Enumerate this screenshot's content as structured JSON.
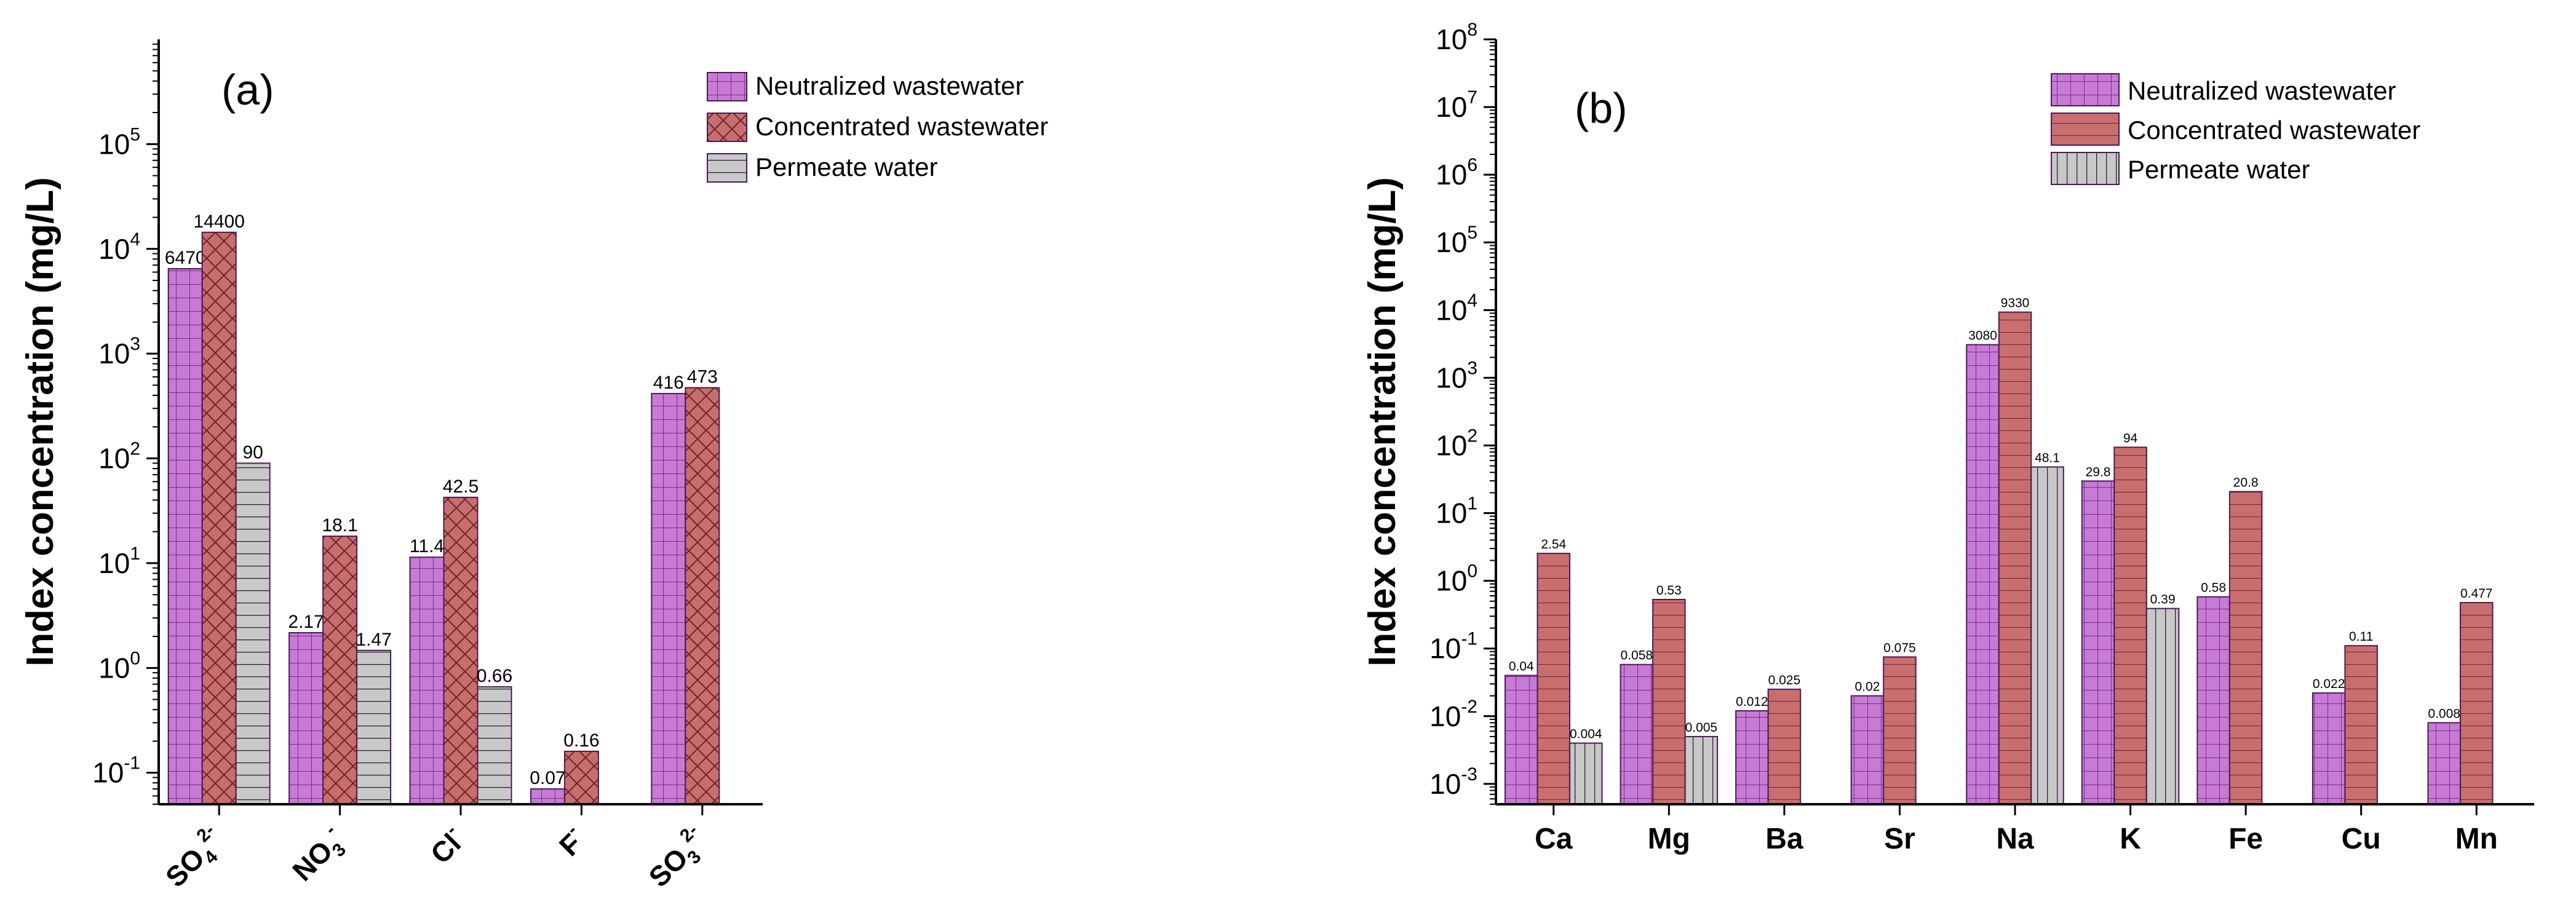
{
  "chart_data": [
    {
      "type": "bar",
      "panel_label": "(a)",
      "ylabel": "Index concentration (mg/L)",
      "yscale": "log",
      "ylim": [
        0.05,
        1000000
      ],
      "y_ticks": [
        {
          "value": 0.1,
          "base": "10",
          "exp": "-1"
        },
        {
          "value": 1,
          "base": "10",
          "exp": "0"
        },
        {
          "value": 10,
          "base": "10",
          "exp": "1"
        },
        {
          "value": 100,
          "base": "10",
          "exp": "2"
        },
        {
          "value": 1000,
          "base": "10",
          "exp": "3"
        },
        {
          "value": 10000,
          "base": "10",
          "exp": "4"
        },
        {
          "value": 100000,
          "base": "10",
          "exp": "5"
        }
      ],
      "categories": [
        {
          "base": "SO",
          "sub": "4",
          "sup": "2-"
        },
        {
          "base": "NO",
          "sub": "3",
          "sup": "-"
        },
        {
          "base": "Cl",
          "sub": "",
          "sup": "-"
        },
        {
          "base": "F",
          "sub": "",
          "sup": "-"
        },
        {
          "base": "SO",
          "sub": "3",
          "sup": "2-"
        }
      ],
      "series": [
        {
          "name": "Neutralized wastewater",
          "pattern": "grid",
          "color": "#c77bd4",
          "values": [
            6470,
            2.17,
            11.4,
            0.07,
            416
          ],
          "labels": [
            "6470",
            "2.17",
            "11.4",
            "0.07",
            "416"
          ]
        },
        {
          "name": "Concentrated wastewater",
          "pattern": "cross",
          "color": "#c86e6e",
          "values": [
            14400,
            18.1,
            42.5,
            0.16,
            473
          ],
          "labels": [
            "14400",
            "18.1",
            "42.5",
            "0.16",
            "473"
          ]
        },
        {
          "name": "Permeate water",
          "pattern": "hlines",
          "color": "#c8c8c8",
          "values": [
            90,
            1.47,
            0.66,
            null,
            null
          ],
          "labels": [
            "90",
            "1.47",
            "0.66",
            "",
            ""
          ]
        }
      ],
      "legend_position": "top-right"
    },
    {
      "type": "bar",
      "panel_label": "(b)",
      "ylabel": "Index concentration (mg/L)",
      "yscale": "log",
      "ylim": [
        0.0005,
        100000000
      ],
      "y_ticks": [
        {
          "value": 0.001,
          "base": "10",
          "exp": "-3"
        },
        {
          "value": 0.01,
          "base": "10",
          "exp": "-2"
        },
        {
          "value": 0.1,
          "base": "10",
          "exp": "-1"
        },
        {
          "value": 1,
          "base": "10",
          "exp": "0"
        },
        {
          "value": 10,
          "base": "10",
          "exp": "1"
        },
        {
          "value": 100,
          "base": "10",
          "exp": "2"
        },
        {
          "value": 1000,
          "base": "10",
          "exp": "3"
        },
        {
          "value": 10000,
          "base": "10",
          "exp": "4"
        },
        {
          "value": 100000,
          "base": "10",
          "exp": "5"
        },
        {
          "value": 1000000,
          "base": "10",
          "exp": "6"
        },
        {
          "value": 10000000,
          "base": "10",
          "exp": "7"
        },
        {
          "value": 100000000,
          "base": "10",
          "exp": "8"
        }
      ],
      "categories": [
        {
          "base": "Ca",
          "sub": "",
          "sup": ""
        },
        {
          "base": "Mg",
          "sub": "",
          "sup": ""
        },
        {
          "base": "Ba",
          "sub": "",
          "sup": ""
        },
        {
          "base": "Sr",
          "sub": "",
          "sup": ""
        },
        {
          "base": "Na",
          "sub": "",
          "sup": ""
        },
        {
          "base": "K",
          "sub": "",
          "sup": ""
        },
        {
          "base": "Fe",
          "sub": "",
          "sup": ""
        },
        {
          "base": "Cu",
          "sub": "",
          "sup": ""
        },
        {
          "base": "Mn",
          "sub": "",
          "sup": ""
        }
      ],
      "series": [
        {
          "name": "Neutralized wastewater",
          "pattern": "grid",
          "color": "#c77bd4",
          "values": [
            0.04,
            0.058,
            0.012,
            0.02,
            3080,
            29.8,
            0.58,
            0.022,
            0.008
          ],
          "labels": [
            "0.04",
            "0.058",
            "0.012",
            "0.02",
            "3080",
            "29.8",
            "0.58",
            "0.022",
            "0.008"
          ]
        },
        {
          "name": "Concentrated wastewater",
          "pattern": "hlines",
          "color": "#c86e6e",
          "values": [
            2.54,
            0.53,
            0.025,
            0.075,
            9330,
            94,
            20.8,
            0.11,
            0.477
          ],
          "labels": [
            "2.54",
            "0.53",
            "0.025",
            "0.075",
            "9330",
            "94",
            "20.8",
            "0.11",
            "0.477"
          ]
        },
        {
          "name": "Permeate water",
          "pattern": "vlines",
          "color": "#c8c8c8",
          "values": [
            0.004,
            0.005,
            null,
            null,
            48.1,
            0.39,
            null,
            null,
            null
          ],
          "labels": [
            "0.004",
            "0.005",
            "",
            "",
            "48.1",
            "0.39",
            "",
            "",
            ""
          ]
        }
      ],
      "legend_position": "top-right"
    }
  ]
}
